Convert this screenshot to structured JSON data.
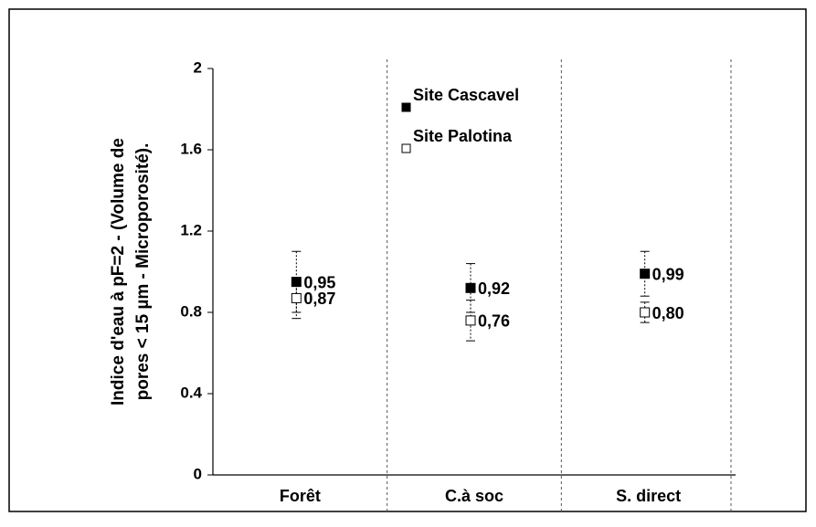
{
  "chart_data": {
    "type": "errorbar",
    "ylabel": [
      "Indice d'eau à pF=2 -  (Volume de",
      "pores < 15 µm - Microporosité)."
    ],
    "categories": [
      "Forêt",
      "C.à soc",
      "S. direct"
    ],
    "series": [
      {
        "name": "Site Cascavel",
        "color": "#000000",
        "marker": "filled",
        "values": [
          0.95,
          0.92,
          0.99
        ],
        "value_labels": [
          "0,95",
          "0,92",
          "0,99"
        ],
        "errors": [
          0.15,
          0.12,
          0.11
        ]
      },
      {
        "name": "Site Palotina",
        "color": "#000000",
        "marker": "open",
        "values": [
          0.87,
          0.76,
          0.8
        ],
        "value_labels": [
          "0,87",
          "0,76",
          "0,80"
        ],
        "errors": [
          0.1,
          0.1,
          0.05
        ]
      }
    ],
    "ylim": [
      0,
      2
    ],
    "yticks": [
      0,
      0.4,
      0.8,
      1.2,
      1.6,
      2
    ],
    "grid": false
  }
}
